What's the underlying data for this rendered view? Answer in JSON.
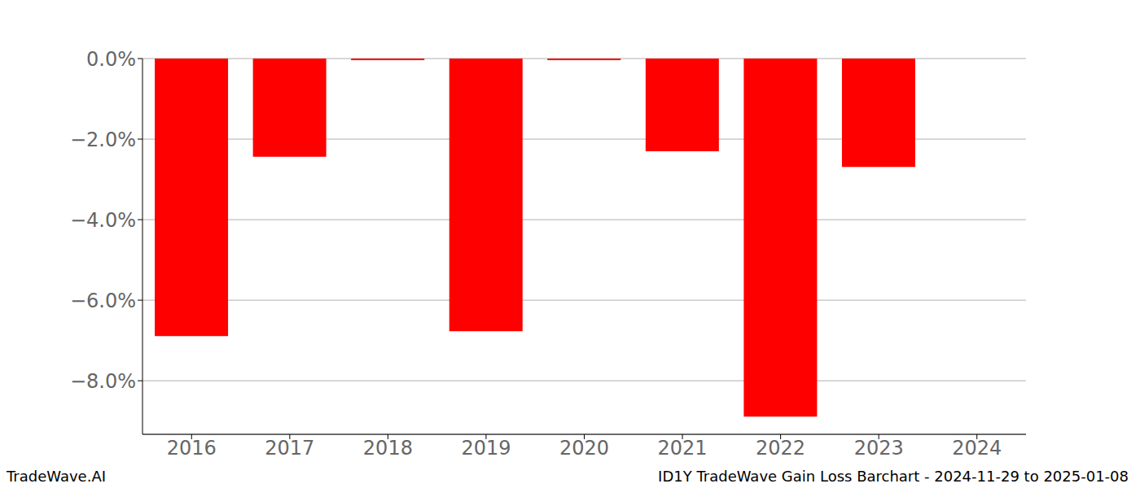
{
  "chart_data": {
    "type": "bar",
    "title": "ID1Y TradeWave Gain Loss Barchart - 2024-11-29 to 2025-01-08",
    "source": "TradeWave.AI",
    "categories": [
      "2016",
      "2017",
      "2018",
      "2019",
      "2020",
      "2021",
      "2022",
      "2023",
      "2024"
    ],
    "values": [
      -6.89,
      -2.44,
      -0.04,
      -6.77,
      -0.04,
      -2.3,
      -8.89,
      -2.69,
      null
    ],
    "color": "#ff0000",
    "ylim": [
      -9.33,
      0
    ],
    "yticks": [
      {
        "value": 0,
        "label": "0.0%"
      },
      {
        "value": -2,
        "label": "−2.0%"
      },
      {
        "value": -4,
        "label": "−4.0%"
      },
      {
        "value": -6,
        "label": "−6.0%"
      },
      {
        "value": -8,
        "label": "−8.0%"
      }
    ],
    "grid": true
  }
}
